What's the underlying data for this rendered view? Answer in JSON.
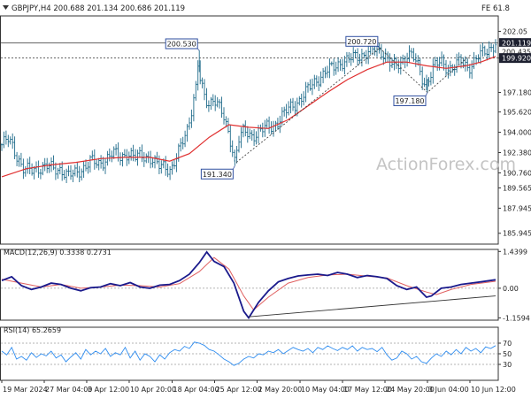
{
  "header": {
    "symbol_line": "GBPJPY,H4  200.688 201.134 200.686 201.119",
    "fib_label": "FE 61.8"
  },
  "watermark": "ActionForex.com",
  "chart_data": [
    {
      "type": "line",
      "name": "price",
      "subtype": "ohlc-bars",
      "ylim": [
        185.08,
        203.28
      ],
      "y_ticks": [
        {
          "label": "202.05",
          "value": 202.05
        },
        {
          "label": "199.920",
          "value": 199.92
        },
        {
          "label": "197.180",
          "value": 197.18
        },
        {
          "label": "195.620",
          "value": 195.62
        },
        {
          "label": "194.000",
          "value": 194.0
        },
        {
          "label": "192.380",
          "value": 192.38
        },
        {
          "label": "190.760",
          "value": 190.76
        },
        {
          "label": "189.565",
          "value": 189.565
        },
        {
          "label": "187.945",
          "value": 187.945
        },
        {
          "label": "185.945",
          "value": 185.945
        }
      ],
      "price_tags": [
        {
          "label": "201.119",
          "value": 201.119,
          "style": "dark"
        },
        {
          "label": "200.435",
          "value": 200.435,
          "style": "plain"
        },
        {
          "label": "199.920",
          "value": 199.92,
          "style": "dark"
        }
      ],
      "level_lines": [
        {
          "value": 201.119,
          "style": "solid"
        },
        {
          "value": 199.92,
          "style": "dashed"
        }
      ],
      "annotations": [
        {
          "label": "200.530",
          "value": 200.53,
          "t": 0.4
        },
        {
          "label": "191.340",
          "value": 191.34,
          "t": 0.472
        },
        {
          "label": "200.720",
          "value": 200.72,
          "t": 0.765
        },
        {
          "label": "197.180",
          "value": 197.18,
          "t": 0.862
        }
      ],
      "close_path": [
        [
          0.0,
          193.0
        ],
        [
          0.012,
          193.4
        ],
        [
          0.022,
          192.9
        ],
        [
          0.03,
          192.2
        ],
        [
          0.045,
          191.0
        ],
        [
          0.06,
          190.9
        ],
        [
          0.075,
          191.2
        ],
        [
          0.09,
          191.3
        ],
        [
          0.105,
          191.0
        ],
        [
          0.12,
          191.1
        ],
        [
          0.135,
          190.5
        ],
        [
          0.15,
          190.7
        ],
        [
          0.165,
          191.2
        ],
        [
          0.18,
          191.7
        ],
        [
          0.195,
          191.4
        ],
        [
          0.21,
          191.9
        ],
        [
          0.225,
          192.3
        ],
        [
          0.24,
          192.0
        ],
        [
          0.255,
          192.4
        ],
        [
          0.27,
          191.9
        ],
        [
          0.285,
          192.2
        ],
        [
          0.3,
          192.0
        ],
        [
          0.31,
          191.5
        ],
        [
          0.32,
          191.2
        ],
        [
          0.33,
          191.4
        ],
        [
          0.342,
          191.0
        ],
        [
          0.355,
          192.0
        ],
        [
          0.365,
          193.1
        ],
        [
          0.375,
          194.2
        ],
        [
          0.385,
          196.0
        ],
        [
          0.393,
          197.5
        ],
        [
          0.398,
          199.6
        ],
        [
          0.402,
          198.0
        ],
        [
          0.41,
          196.8
        ],
        [
          0.418,
          196.3
        ],
        [
          0.43,
          196.8
        ],
        [
          0.44,
          196.0
        ],
        [
          0.45,
          195.0
        ],
        [
          0.458,
          194.0
        ],
        [
          0.466,
          193.0
        ],
        [
          0.472,
          191.8
        ],
        [
          0.48,
          193.5
        ],
        [
          0.49,
          194.0
        ],
        [
          0.505,
          193.7
        ],
        [
          0.52,
          194.1
        ],
        [
          0.535,
          194.3
        ],
        [
          0.55,
          194.5
        ],
        [
          0.565,
          195.2
        ],
        [
          0.58,
          195.8
        ],
        [
          0.595,
          196.3
        ],
        [
          0.61,
          196.9
        ],
        [
          0.625,
          197.6
        ],
        [
          0.64,
          198.3
        ],
        [
          0.655,
          198.8
        ],
        [
          0.67,
          199.1
        ],
        [
          0.685,
          199.6
        ],
        [
          0.7,
          199.7
        ],
        [
          0.715,
          200.0
        ],
        [
          0.73,
          200.2
        ],
        [
          0.745,
          200.4
        ],
        [
          0.76,
          200.6
        ],
        [
          0.775,
          200.3
        ],
        [
          0.79,
          199.3
        ],
        [
          0.8,
          199.2
        ],
        [
          0.81,
          199.6
        ],
        [
          0.822,
          200.4
        ],
        [
          0.833,
          200.0
        ],
        [
          0.845,
          199.0
        ],
        [
          0.855,
          197.9
        ],
        [
          0.862,
          198.2
        ],
        [
          0.875,
          199.2
        ],
        [
          0.89,
          199.6
        ],
        [
          0.905,
          199.1
        ],
        [
          0.915,
          199.2
        ],
        [
          0.93,
          199.6
        ],
        [
          0.945,
          199.2
        ],
        [
          0.96,
          199.8
        ],
        [
          0.975,
          200.3
        ],
        [
          0.99,
          200.8
        ],
        [
          1.0,
          201.12
        ]
      ],
      "ma_path": [
        [
          0.0,
          190.45
        ],
        [
          0.05,
          191.1
        ],
        [
          0.1,
          191.4
        ],
        [
          0.15,
          191.6
        ],
        [
          0.2,
          191.9
        ],
        [
          0.25,
          192.0
        ],
        [
          0.3,
          192.0
        ],
        [
          0.34,
          191.7
        ],
        [
          0.38,
          192.3
        ],
        [
          0.42,
          193.6
        ],
        [
          0.46,
          194.6
        ],
        [
          0.5,
          194.4
        ],
        [
          0.54,
          194.3
        ],
        [
          0.58,
          195.0
        ],
        [
          0.62,
          196.1
        ],
        [
          0.66,
          197.2
        ],
        [
          0.7,
          198.2
        ],
        [
          0.74,
          199.0
        ],
        [
          0.78,
          199.6
        ],
        [
          0.82,
          199.6
        ],
        [
          0.86,
          199.3
        ],
        [
          0.9,
          199.1
        ],
        [
          0.94,
          199.3
        ],
        [
          0.97,
          199.6
        ],
        [
          1.0,
          200.05
        ]
      ],
      "trendline": [
        [
          0.475,
          191.6
        ],
        [
          0.765,
          200.72
        ]
      ],
      "projection": [
        [
          0.765,
          200.72
        ],
        [
          0.862,
          197.18
        ],
        [
          0.95,
          200.2
        ]
      ]
    },
    {
      "type": "line",
      "name": "macd",
      "label": "MACD(12,26,9) 0.3338 0.2731",
      "ylim": [
        -1.25,
        1.52
      ],
      "y_ticks": [
        {
          "label": "1.4399",
          "value": 1.4399
        },
        {
          "label": "0.00",
          "value": 0.0
        },
        {
          "label": "-1.1594",
          "value": -1.1594
        }
      ],
      "zero_line": 0.0,
      "macd": [
        [
          0.0,
          0.3
        ],
        [
          0.02,
          0.45
        ],
        [
          0.04,
          0.1
        ],
        [
          0.06,
          -0.05
        ],
        [
          0.08,
          0.05
        ],
        [
          0.1,
          0.2
        ],
        [
          0.12,
          0.15
        ],
        [
          0.14,
          0.0
        ],
        [
          0.16,
          -0.1
        ],
        [
          0.18,
          0.02
        ],
        [
          0.2,
          0.05
        ],
        [
          0.22,
          0.18
        ],
        [
          0.24,
          0.1
        ],
        [
          0.26,
          0.22
        ],
        [
          0.28,
          0.05
        ],
        [
          0.3,
          0.0
        ],
        [
          0.32,
          0.12
        ],
        [
          0.34,
          0.15
        ],
        [
          0.36,
          0.3
        ],
        [
          0.38,
          0.55
        ],
        [
          0.4,
          1.0
        ],
        [
          0.415,
          1.42
        ],
        [
          0.43,
          1.05
        ],
        [
          0.45,
          0.85
        ],
        [
          0.47,
          0.2
        ],
        [
          0.49,
          -0.9
        ],
        [
          0.5,
          -1.16
        ],
        [
          0.52,
          -0.55
        ],
        [
          0.54,
          -0.1
        ],
        [
          0.56,
          0.25
        ],
        [
          0.58,
          0.38
        ],
        [
          0.6,
          0.48
        ],
        [
          0.62,
          0.52
        ],
        [
          0.64,
          0.55
        ],
        [
          0.66,
          0.5
        ],
        [
          0.68,
          0.62
        ],
        [
          0.7,
          0.55
        ],
        [
          0.72,
          0.42
        ],
        [
          0.74,
          0.5
        ],
        [
          0.76,
          0.45
        ],
        [
          0.78,
          0.38
        ],
        [
          0.8,
          0.1
        ],
        [
          0.82,
          -0.05
        ],
        [
          0.84,
          0.05
        ],
        [
          0.86,
          -0.35
        ],
        [
          0.87,
          -0.3
        ],
        [
          0.89,
          0.0
        ],
        [
          0.91,
          0.05
        ],
        [
          0.93,
          0.15
        ],
        [
          0.95,
          0.2
        ],
        [
          0.97,
          0.25
        ],
        [
          1.0,
          0.3338
        ]
      ],
      "signal": [
        [
          0.0,
          0.35
        ],
        [
          0.04,
          0.2
        ],
        [
          0.08,
          0.05
        ],
        [
          0.12,
          0.15
        ],
        [
          0.16,
          0.0
        ],
        [
          0.2,
          0.05
        ],
        [
          0.24,
          0.12
        ],
        [
          0.28,
          0.1
        ],
        [
          0.32,
          0.05
        ],
        [
          0.36,
          0.18
        ],
        [
          0.4,
          0.65
        ],
        [
          0.43,
          1.2
        ],
        [
          0.46,
          0.75
        ],
        [
          0.49,
          -0.3
        ],
        [
          0.51,
          -0.85
        ],
        [
          0.54,
          -0.35
        ],
        [
          0.58,
          0.2
        ],
        [
          0.62,
          0.42
        ],
        [
          0.66,
          0.52
        ],
        [
          0.7,
          0.55
        ],
        [
          0.74,
          0.47
        ],
        [
          0.78,
          0.4
        ],
        [
          0.82,
          0.1
        ],
        [
          0.86,
          -0.15
        ],
        [
          0.88,
          -0.25
        ],
        [
          0.91,
          -0.05
        ],
        [
          0.95,
          0.15
        ],
        [
          1.0,
          0.2731
        ]
      ],
      "trendline": [
        [
          0.5,
          -1.12
        ],
        [
          1.0,
          -0.3
        ]
      ]
    },
    {
      "type": "line",
      "name": "rsi",
      "label": "RSI(14) 65.2659",
      "ylim": [
        0,
        100
      ],
      "y_ticks": [
        {
          "label": "70",
          "value": 70
        },
        {
          "label": "50",
          "value": 50
        },
        {
          "label": "30",
          "value": 30
        }
      ],
      "levels": [
        70,
        50,
        30
      ],
      "values": [
        [
          0.0,
          55
        ],
        [
          0.01,
          48
        ],
        [
          0.02,
          62
        ],
        [
          0.03,
          40
        ],
        [
          0.04,
          45
        ],
        [
          0.05,
          38
        ],
        [
          0.06,
          52
        ],
        [
          0.07,
          43
        ],
        [
          0.08,
          50
        ],
        [
          0.09,
          46
        ],
        [
          0.1,
          55
        ],
        [
          0.11,
          42
        ],
        [
          0.12,
          48
        ],
        [
          0.13,
          35
        ],
        [
          0.14,
          44
        ],
        [
          0.15,
          52
        ],
        [
          0.16,
          40
        ],
        [
          0.17,
          58
        ],
        [
          0.18,
          48
        ],
        [
          0.19,
          55
        ],
        [
          0.2,
          50
        ],
        [
          0.21,
          60
        ],
        [
          0.22,
          45
        ],
        [
          0.23,
          52
        ],
        [
          0.24,
          48
        ],
        [
          0.25,
          62
        ],
        [
          0.26,
          42
        ],
        [
          0.27,
          55
        ],
        [
          0.28,
          38
        ],
        [
          0.29,
          50
        ],
        [
          0.3,
          45
        ],
        [
          0.31,
          35
        ],
        [
          0.32,
          48
        ],
        [
          0.33,
          40
        ],
        [
          0.34,
          52
        ],
        [
          0.35,
          58
        ],
        [
          0.36,
          55
        ],
        [
          0.37,
          64
        ],
        [
          0.38,
          60
        ],
        [
          0.39,
          72
        ],
        [
          0.4,
          70
        ],
        [
          0.41,
          66
        ],
        [
          0.42,
          58
        ],
        [
          0.43,
          55
        ],
        [
          0.44,
          48
        ],
        [
          0.45,
          40
        ],
        [
          0.46,
          35
        ],
        [
          0.47,
          28
        ],
        [
          0.48,
          32
        ],
        [
          0.49,
          40
        ],
        [
          0.5,
          45
        ],
        [
          0.51,
          42
        ],
        [
          0.52,
          50
        ],
        [
          0.53,
          48
        ],
        [
          0.54,
          55
        ],
        [
          0.55,
          52
        ],
        [
          0.56,
          58
        ],
        [
          0.57,
          50
        ],
        [
          0.58,
          56
        ],
        [
          0.59,
          62
        ],
        [
          0.6,
          58
        ],
        [
          0.61,
          55
        ],
        [
          0.62,
          60
        ],
        [
          0.63,
          52
        ],
        [
          0.64,
          62
        ],
        [
          0.65,
          58
        ],
        [
          0.66,
          65
        ],
        [
          0.67,
          60
        ],
        [
          0.68,
          56
        ],
        [
          0.69,
          62
        ],
        [
          0.7,
          58
        ],
        [
          0.71,
          65
        ],
        [
          0.72,
          55
        ],
        [
          0.73,
          62
        ],
        [
          0.74,
          58
        ],
        [
          0.75,
          60
        ],
        [
          0.76,
          54
        ],
        [
          0.77,
          62
        ],
        [
          0.78,
          48
        ],
        [
          0.79,
          38
        ],
        [
          0.8,
          42
        ],
        [
          0.81,
          55
        ],
        [
          0.82,
          50
        ],
        [
          0.83,
          40
        ],
        [
          0.84,
          45
        ],
        [
          0.85,
          35
        ],
        [
          0.86,
          32
        ],
        [
          0.87,
          42
        ],
        [
          0.88,
          50
        ],
        [
          0.89,
          45
        ],
        [
          0.9,
          55
        ],
        [
          0.91,
          48
        ],
        [
          0.92,
          58
        ],
        [
          0.93,
          50
        ],
        [
          0.94,
          62
        ],
        [
          0.95,
          55
        ],
        [
          0.96,
          60
        ],
        [
          0.97,
          52
        ],
        [
          0.98,
          63
        ],
        [
          0.99,
          60
        ],
        [
          1.0,
          65.27
        ]
      ]
    }
  ],
  "x_axis": {
    "labels": [
      {
        "label": "19 Mar 2024",
        "t": 0.0
      },
      {
        "label": "27 Mar 04:00",
        "t": 0.086
      },
      {
        "label": "3 Apr 12:00",
        "t": 0.172
      },
      {
        "label": "10 Apr 20:00",
        "t": 0.258
      },
      {
        "label": "18 Apr 04:00",
        "t": 0.345
      },
      {
        "label": "25 Apr 12:00",
        "t": 0.431
      },
      {
        "label": "2 May 20:00",
        "t": 0.517
      },
      {
        "label": "10 May 04:00",
        "t": 0.604
      },
      {
        "label": "17 May 12:00",
        "t": 0.69
      },
      {
        "label": "24 May 20:00",
        "t": 0.776
      },
      {
        "label": "3 Jun 04:00",
        "t": 0.862
      },
      {
        "label": "10 Jun 12:00",
        "t": 0.948
      }
    ]
  },
  "colors": {
    "price": "#1f6b8a",
    "ma": "#e03030",
    "macd": "#1a1a8c",
    "signal": "#e06060",
    "rsi": "#2d8cf0",
    "tag_dark": "#1d2030",
    "axis": "#333333",
    "grid": "#9a9a9a"
  }
}
